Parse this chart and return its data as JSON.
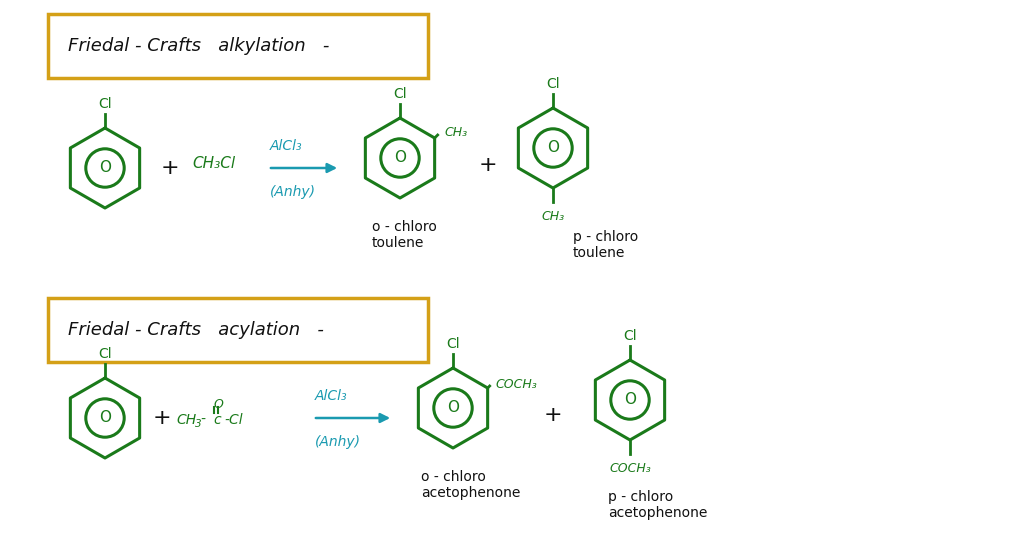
{
  "bg_color": "#ffffff",
  "ring_color": "#1a7a1a",
  "text_color_black": "#111111",
  "text_color_green": "#1a7a1a",
  "text_color_blue": "#1a9ab0",
  "box_color": "#d4a017",
  "title1": "Friedal - Crafts   alkylation   -",
  "title2": "Friedal - Crafts   acylation   -",
  "cl_label": "Cl",
  "ch3_label": "CH₃",
  "coch3_label": "COCH₃",
  "ch3cl_label": "CH₃Cl",
  "alcl3_label": "AlCl₃",
  "anhy_label": "(Anhy)",
  "product1a_label": "o - chloro\ntoulene",
  "product1b_label": "p - chloro\ntoulene",
  "product2a_label": "o - chloro\nacetophenone",
  "product2b_label": "p - chloro\nacetophenone",
  "figw": 10.29,
  "figh": 5.57,
  "dpi": 100
}
